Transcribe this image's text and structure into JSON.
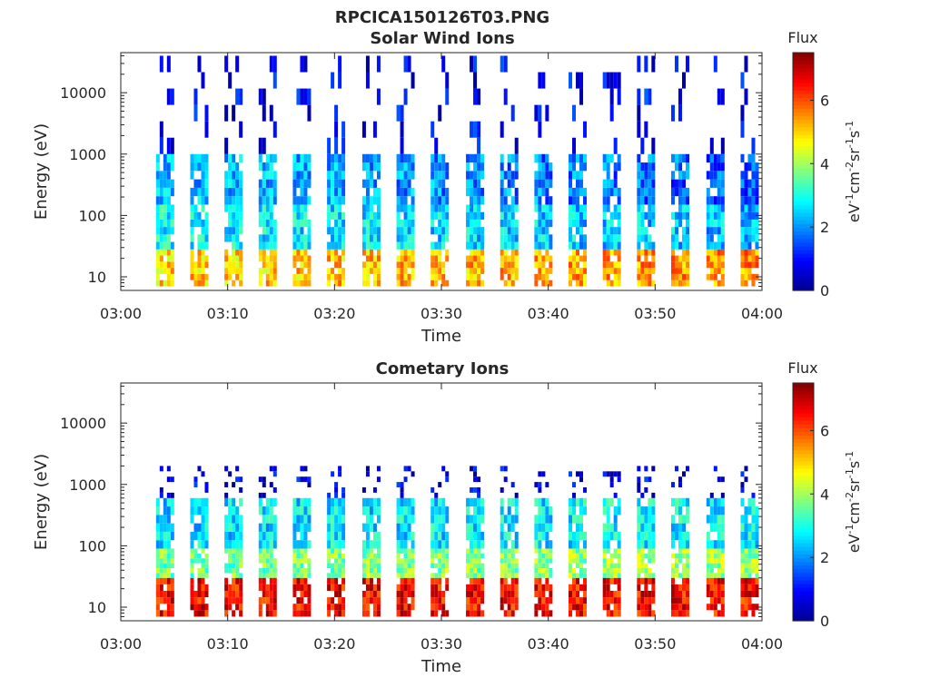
{
  "figure_title": "RPCICA150126T03.PNG",
  "colormap": [
    "#00008f",
    "#0000ff",
    "#0080ff",
    "#00ffff",
    "#80ff80",
    "#ffff00",
    "#ff8000",
    "#ff0000",
    "#800000"
  ],
  "chart_data": [
    {
      "type": "heatmap",
      "title": "Solar Wind Ions",
      "xlabel": "Time",
      "ylabel": "Energy (eV)",
      "x_tick_labels": [
        "03:00",
        "03:10",
        "03:20",
        "03:30",
        "03:40",
        "03:50",
        "04:00"
      ],
      "x_range_minutes": [
        0,
        60
      ],
      "y_scale": "log",
      "y_range": [
        6,
        45000
      ],
      "y_ticks": [
        10,
        100,
        1000,
        10000
      ],
      "y_tick_labels": [
        "10",
        "100",
        "1000",
        "10000"
      ],
      "colorbar": {
        "label": "Flux",
        "units": "eV^-1 cm^-2 sr^-1 s^-1",
        "range": [
          0,
          7.5
        ],
        "ticks": [
          0,
          2,
          4,
          6
        ]
      },
      "scan_start_minutes": [
        3.3,
        6.5,
        9.7,
        12.9,
        16.1,
        19.3,
        22.6,
        25.8,
        29.0,
        32.3,
        35.5,
        38.7,
        41.9,
        45.1,
        48.3,
        51.5,
        54.8,
        58.0
      ],
      "bands": [
        {
          "e_min": 7,
          "e_max": 28,
          "level_first": 5.0,
          "level_last": 5.5
        },
        {
          "e_min": 28,
          "e_max": 150,
          "level_first": 2.8,
          "level_last": 2.3
        },
        {
          "e_min": 150,
          "e_max": 1000,
          "level_first": 2.4,
          "level_last": 1.6
        },
        {
          "e_min": 1000,
          "e_max": 40000,
          "level_first": 0.8,
          "level_last": 0.9
        }
      ]
    },
    {
      "type": "heatmap",
      "title": "Cometary Ions",
      "xlabel": "Time",
      "ylabel": "Energy (eV)",
      "x_tick_labels": [
        "03:00",
        "03:10",
        "03:20",
        "03:30",
        "03:40",
        "03:50",
        "04:00"
      ],
      "x_range_minutes": [
        0,
        60
      ],
      "y_scale": "log",
      "y_range": [
        6,
        45000
      ],
      "y_ticks": [
        10,
        100,
        1000,
        10000
      ],
      "y_tick_labels": [
        "10",
        "100",
        "1000",
        "10000"
      ],
      "colorbar": {
        "label": "Flux",
        "units": "eV^-1 cm^-2 sr^-1 s^-1",
        "range": [
          0,
          7.5
        ],
        "ticks": [
          0,
          2,
          4,
          6
        ]
      },
      "scan_start_minutes": [
        3.3,
        6.5,
        9.7,
        12.9,
        16.1,
        19.3,
        22.6,
        25.8,
        29.0,
        32.3,
        35.5,
        38.7,
        41.9,
        45.1,
        48.3,
        51.5,
        54.8,
        58.0
      ],
      "bands": [
        {
          "e_min": 7,
          "e_max": 30,
          "level_first": 6.6,
          "level_last": 6.5
        },
        {
          "e_min": 30,
          "e_max": 90,
          "level_first": 3.6,
          "level_last": 4.0
        },
        {
          "e_min": 90,
          "e_max": 600,
          "level_first": 2.6,
          "level_last": 2.8
        },
        {
          "e_min": 600,
          "e_max": 2000,
          "level_first": 0.7,
          "level_last": 0.7
        }
      ]
    }
  ]
}
